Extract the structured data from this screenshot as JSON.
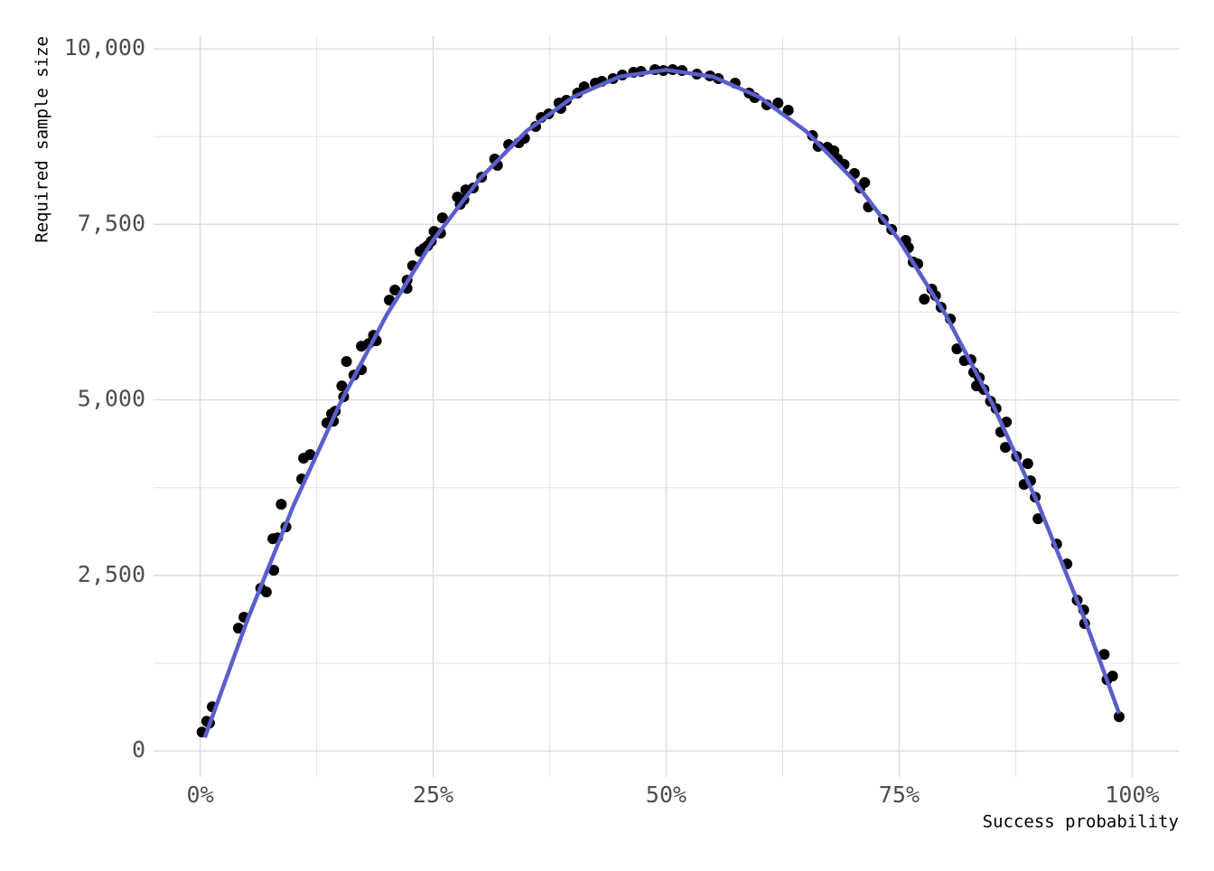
{
  "chart_data": {
    "type": "scatter",
    "x_label": "Success probability",
    "y_label": "Required sample size",
    "xlim": [
      -5,
      105
    ],
    "ylim": [
      -370,
      10180
    ],
    "xticks": [
      {
        "value": 0,
        "label": "0%"
      },
      {
        "value": 25,
        "label": "25%"
      },
      {
        "value": 50,
        "label": "50%"
      },
      {
        "value": 75,
        "label": "75%"
      },
      {
        "value": 100,
        "label": "100%"
      }
    ],
    "yticks": [
      0,
      {
        "value": 2500,
        "label": "2,500"
      },
      {
        "value": 5000,
        "label": "5,000"
      },
      {
        "value": 7500,
        "label": "7,500"
      },
      {
        "value": 10000,
        "label": "10,000"
      }
    ],
    "xminor": [
      12.5,
      37.5,
      62.5,
      87.5
    ],
    "yminor": [
      1250,
      3750,
      6250,
      8750
    ],
    "grid": true,
    "points": {
      "color": "#000000",
      "x": [
        0.2,
        0.7,
        1.0,
        1.3,
        4.1,
        4.7,
        6.5,
        7.1,
        7.9,
        7.8,
        8.3,
        8.7,
        9.2,
        10.9,
        11.1,
        11.8,
        13.6,
        14.1,
        14.3,
        14.5,
        15.2,
        15.4,
        15.7,
        16.5,
        17.3,
        17.3,
        18.1,
        18.6,
        18.9,
        20.3,
        20.9,
        22.2,
        22.2,
        22.8,
        23.6,
        24.0,
        24.4,
        24.8,
        25.1,
        25.8,
        26.0,
        27.6,
        27.9,
        28.3,
        28.5,
        29.3,
        30.2,
        31.6,
        31.9,
        33.1,
        34.2,
        34.8,
        36.0,
        36.6,
        37.4,
        38.5,
        38.7,
        39.3,
        40.5,
        41.2,
        42.4,
        43.1,
        44.3,
        45.3,
        46.5,
        47.3,
        48.8,
        49.7,
        50.7,
        51.7,
        53.3,
        54.7,
        55.6,
        57.4,
        58.9,
        59.5,
        60.8,
        62.0,
        63.1,
        65.7,
        66.3,
        67.3,
        68.0,
        68.4,
        69.1,
        70.2,
        70.8,
        71.3,
        71.7,
        73.3,
        74.2,
        75.7,
        76.0,
        76.5,
        77.0,
        77.7,
        78.5,
        78.9,
        79.5,
        80.5,
        81.2,
        82.0,
        82.7,
        83.0,
        83.3,
        83.6,
        84.1,
        84.8,
        85.4,
        85.9,
        86.5,
        86.4,
        87.6,
        88.8,
        88.4,
        89.1,
        89.6,
        89.9,
        91.9,
        93.0,
        94.1,
        94.8,
        94.9,
        97.0,
        97.3,
        97.9,
        98.6
      ],
      "y": [
        270,
        425,
        399,
        631,
        1750,
        1905,
        2317,
        2265,
        2574,
        3024,
        3037,
        3514,
        3192,
        3874,
        4170,
        4221,
        4672,
        4800,
        4698,
        4839,
        5199,
        5045,
        5547,
        5354,
        5431,
        5766,
        5804,
        5920,
        5843,
        6422,
        6564,
        6589,
        6705,
        6911,
        7117,
        7156,
        7194,
        7259,
        7400,
        7375,
        7593,
        7889,
        7786,
        7851,
        7992,
        8018,
        8172,
        8430,
        8340,
        8636,
        8662,
        8726,
        8893,
        9022,
        9073,
        9228,
        9151,
        9266,
        9369,
        9459,
        9511,
        9537,
        9575,
        9627,
        9665,
        9678,
        9704,
        9691,
        9704,
        9691,
        9640,
        9614,
        9575,
        9511,
        9369,
        9305,
        9202,
        9228,
        9125,
        8764,
        8610,
        8597,
        8546,
        8430,
        8353,
        8224,
        8018,
        8095,
        7748,
        7568,
        7426,
        7272,
        7168,
        6963,
        6937,
        6435,
        6577,
        6486,
        6319,
        6152,
        5727,
        5560,
        5573,
        5392,
        5199,
        5315,
        5148,
        4981,
        4878,
        4543,
        4685,
        4324,
        4196,
        4093,
        3797,
        3848,
        3616,
        3308,
        2947,
        2664,
        2149,
        2008,
        1815,
        1377,
        1017,
        1068,
        489
      ]
    },
    "fit": {
      "color": "#5a5fcb",
      "x": [
        0.5,
        5,
        10,
        15,
        20,
        25,
        30,
        35,
        40,
        45,
        50,
        55,
        60,
        65,
        70,
        75,
        80,
        85,
        90,
        95,
        98.6
      ],
      "y": [
        193,
        1843,
        3492,
        4947,
        6208,
        7275,
        8148,
        8827,
        9312,
        9603,
        9700,
        9603,
        9312,
        8827,
        8148,
        7275,
        6208,
        4947,
        3492,
        1843,
        536
      ]
    }
  }
}
